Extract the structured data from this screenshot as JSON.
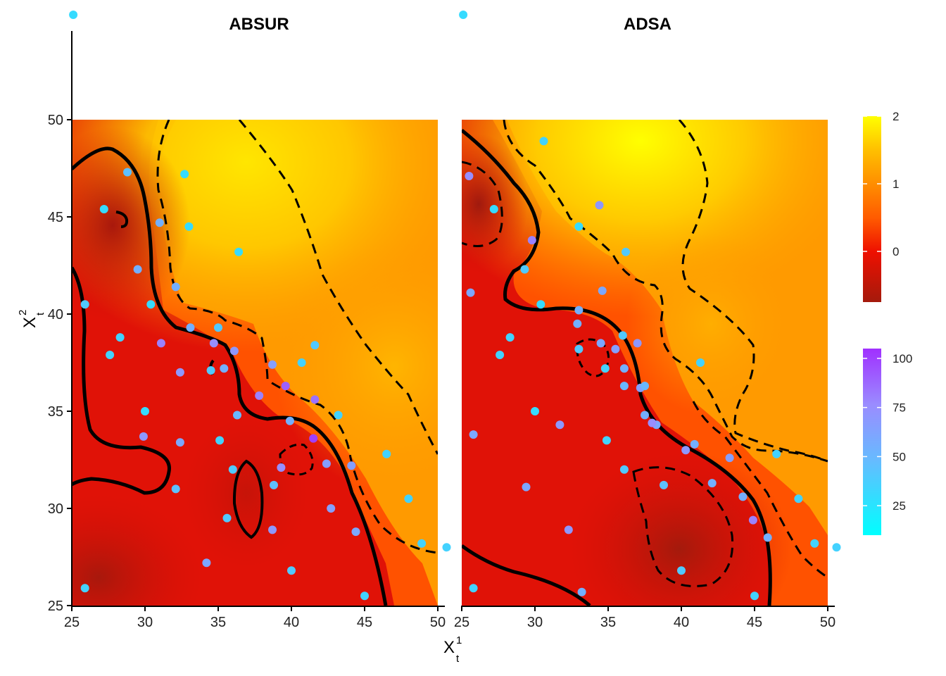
{
  "chart_data": {
    "type": "heatmap",
    "description_text": {
      "xlabel": "X",
      "xlabel_sup": "1",
      "xlabel_sub": "t",
      "ylabel": "X",
      "ylabel_sup": "2",
      "ylabel_sub": "t"
    },
    "panels": [
      {
        "title": "ABSUR",
        "xlim": [
          25,
          50
        ],
        "ylim": [
          25,
          50
        ],
        "xticks": [
          "25",
          "30",
          "35",
          "40",
          "45",
          "50"
        ],
        "yticks": [
          "25",
          "30",
          "35",
          "40",
          "45",
          "50"
        ],
        "points": [
          {
            "x": 27.2,
            "y": 45.4,
            "n": 30
          },
          {
            "x": 28.8,
            "y": 47.3,
            "n": 45
          },
          {
            "x": 32.7,
            "y": 47.2,
            "n": 30
          },
          {
            "x": 33.0,
            "y": 44.5,
            "n": 30
          },
          {
            "x": 31.0,
            "y": 44.7,
            "n": 55
          },
          {
            "x": 36.4,
            "y": 43.2,
            "n": 30
          },
          {
            "x": 29.5,
            "y": 42.3,
            "n": 55
          },
          {
            "x": 32.1,
            "y": 41.4,
            "n": 55
          },
          {
            "x": 25.9,
            "y": 40.5,
            "n": 40
          },
          {
            "x": 30.4,
            "y": 40.5,
            "n": 30
          },
          {
            "x": 33.1,
            "y": 39.3,
            "n": 55
          },
          {
            "x": 35.0,
            "y": 39.3,
            "n": 40
          },
          {
            "x": 28.3,
            "y": 38.8,
            "n": 35
          },
          {
            "x": 31.1,
            "y": 38.5,
            "n": 80
          },
          {
            "x": 34.7,
            "y": 38.5,
            "n": 75
          },
          {
            "x": 36.1,
            "y": 38.1,
            "n": 70
          },
          {
            "x": 41.6,
            "y": 38.4,
            "n": 40
          },
          {
            "x": 27.6,
            "y": 37.9,
            "n": 35
          },
          {
            "x": 40.7,
            "y": 37.5,
            "n": 35
          },
          {
            "x": 38.7,
            "y": 37.4,
            "n": 65
          },
          {
            "x": 32.4,
            "y": 37.0,
            "n": 70
          },
          {
            "x": 35.4,
            "y": 37.2,
            "n": 55
          },
          {
            "x": 34.5,
            "y": 37.1,
            "n": 40
          },
          {
            "x": 39.6,
            "y": 36.3,
            "n": 90
          },
          {
            "x": 37.8,
            "y": 35.8,
            "n": 80
          },
          {
            "x": 41.6,
            "y": 35.6,
            "n": 85
          },
          {
            "x": 30.0,
            "y": 35.0,
            "n": 30
          },
          {
            "x": 36.3,
            "y": 34.8,
            "n": 50
          },
          {
            "x": 43.2,
            "y": 34.8,
            "n": 35
          },
          {
            "x": 39.9,
            "y": 34.5,
            "n": 55
          },
          {
            "x": 29.9,
            "y": 33.7,
            "n": 70
          },
          {
            "x": 32.4,
            "y": 33.4,
            "n": 60
          },
          {
            "x": 35.1,
            "y": 33.5,
            "n": 35
          },
          {
            "x": 41.5,
            "y": 33.6,
            "n": 100
          },
          {
            "x": 46.5,
            "y": 32.8,
            "n": 35
          },
          {
            "x": 42.4,
            "y": 32.3,
            "n": 65
          },
          {
            "x": 44.1,
            "y": 32.2,
            "n": 65
          },
          {
            "x": 36.0,
            "y": 32.0,
            "n": 40
          },
          {
            "x": 39.3,
            "y": 32.1,
            "n": 75
          },
          {
            "x": 38.8,
            "y": 31.2,
            "n": 45
          },
          {
            "x": 32.1,
            "y": 31.0,
            "n": 45
          },
          {
            "x": 48.0,
            "y": 30.5,
            "n": 35
          },
          {
            "x": 42.7,
            "y": 30.0,
            "n": 65
          },
          {
            "x": 35.6,
            "y": 29.5,
            "n": 40
          },
          {
            "x": 38.7,
            "y": 28.9,
            "n": 70
          },
          {
            "x": 44.4,
            "y": 28.8,
            "n": 60
          },
          {
            "x": 48.9,
            "y": 28.2,
            "n": 35
          },
          {
            "x": 50.6,
            "y": 28.0,
            "n": 35
          },
          {
            "x": 34.2,
            "y": 27.2,
            "n": 60
          },
          {
            "x": 40.0,
            "y": 26.8,
            "n": 40
          },
          {
            "x": 25.9,
            "y": 25.9,
            "n": 35
          },
          {
            "x": 45.0,
            "y": 25.5,
            "n": 35
          },
          {
            "x": 25.1,
            "y": 55.4,
            "n": 30
          }
        ]
      },
      {
        "title": "ADSA",
        "xlim": [
          25,
          50
        ],
        "ylim": [
          25,
          50
        ],
        "xticks": [
          "25",
          "30",
          "35",
          "40",
          "45",
          "50"
        ],
        "yticks": [],
        "points": [
          {
            "x": 25.5,
            "y": 47.1,
            "n": 75
          },
          {
            "x": 30.6,
            "y": 48.9,
            "n": 35
          },
          {
            "x": 27.2,
            "y": 45.4,
            "n": 30
          },
          {
            "x": 33.0,
            "y": 44.5,
            "n": 30
          },
          {
            "x": 34.4,
            "y": 45.6,
            "n": 70
          },
          {
            "x": 29.8,
            "y": 43.8,
            "n": 80
          },
          {
            "x": 36.2,
            "y": 43.2,
            "n": 40
          },
          {
            "x": 29.3,
            "y": 42.3,
            "n": 40
          },
          {
            "x": 25.6,
            "y": 41.1,
            "n": 60
          },
          {
            "x": 34.6,
            "y": 41.2,
            "n": 60
          },
          {
            "x": 30.4,
            "y": 40.5,
            "n": 30
          },
          {
            "x": 33.0,
            "y": 40.2,
            "n": 55
          },
          {
            "x": 32.9,
            "y": 39.5,
            "n": 55
          },
          {
            "x": 28.3,
            "y": 38.8,
            "n": 35
          },
          {
            "x": 36.0,
            "y": 38.9,
            "n": 40
          },
          {
            "x": 34.5,
            "y": 38.5,
            "n": 60
          },
          {
            "x": 35.5,
            "y": 38.2,
            "n": 65
          },
          {
            "x": 37.0,
            "y": 38.5,
            "n": 70
          },
          {
            "x": 27.6,
            "y": 37.9,
            "n": 35
          },
          {
            "x": 33.0,
            "y": 38.2,
            "n": 40
          },
          {
            "x": 41.3,
            "y": 37.5,
            "n": 35
          },
          {
            "x": 34.8,
            "y": 37.2,
            "n": 35
          },
          {
            "x": 36.1,
            "y": 37.2,
            "n": 55
          },
          {
            "x": 36.1,
            "y": 36.3,
            "n": 50
          },
          {
            "x": 37.2,
            "y": 36.2,
            "n": 65
          },
          {
            "x": 37.5,
            "y": 36.3,
            "n": 50
          },
          {
            "x": 30.0,
            "y": 35.0,
            "n": 30
          },
          {
            "x": 37.5,
            "y": 34.8,
            "n": 55
          },
          {
            "x": 38.3,
            "y": 34.3,
            "n": 60
          },
          {
            "x": 38.0,
            "y": 34.4,
            "n": 75
          },
          {
            "x": 31.7,
            "y": 34.3,
            "n": 70
          },
          {
            "x": 25.8,
            "y": 33.8,
            "n": 60
          },
          {
            "x": 34.9,
            "y": 33.5,
            "n": 35
          },
          {
            "x": 40.9,
            "y": 33.3,
            "n": 55
          },
          {
            "x": 40.3,
            "y": 33.0,
            "n": 70
          },
          {
            "x": 43.3,
            "y": 32.6,
            "n": 65
          },
          {
            "x": 46.5,
            "y": 32.8,
            "n": 35
          },
          {
            "x": 36.1,
            "y": 32.0,
            "n": 40
          },
          {
            "x": 42.1,
            "y": 31.3,
            "n": 55
          },
          {
            "x": 38.8,
            "y": 31.2,
            "n": 45
          },
          {
            "x": 29.4,
            "y": 31.1,
            "n": 60
          },
          {
            "x": 44.2,
            "y": 30.6,
            "n": 55
          },
          {
            "x": 48.0,
            "y": 30.5,
            "n": 35
          },
          {
            "x": 44.9,
            "y": 29.4,
            "n": 80
          },
          {
            "x": 32.3,
            "y": 28.9,
            "n": 70
          },
          {
            "x": 45.9,
            "y": 28.5,
            "n": 55
          },
          {
            "x": 49.1,
            "y": 28.2,
            "n": 35
          },
          {
            "x": 50.6,
            "y": 28.0,
            "n": 35
          },
          {
            "x": 40.0,
            "y": 26.8,
            "n": 40
          },
          {
            "x": 25.8,
            "y": 25.9,
            "n": 35
          },
          {
            "x": 33.2,
            "y": 25.7,
            "n": 55
          },
          {
            "x": 45.0,
            "y": 25.5,
            "n": 35
          },
          {
            "x": 25.1,
            "y": 55.4,
            "n": 30
          }
        ]
      }
    ],
    "fill_legend": {
      "ticks": [
        "2",
        "1",
        "0"
      ],
      "values": [
        2,
        1,
        0
      ],
      "range": [
        -0.75,
        2
      ]
    },
    "color_legend": {
      "ticks": [
        "100",
        "75",
        "50",
        "25"
      ],
      "values": [
        100,
        75,
        50,
        25
      ],
      "range": [
        10,
        105
      ]
    }
  }
}
